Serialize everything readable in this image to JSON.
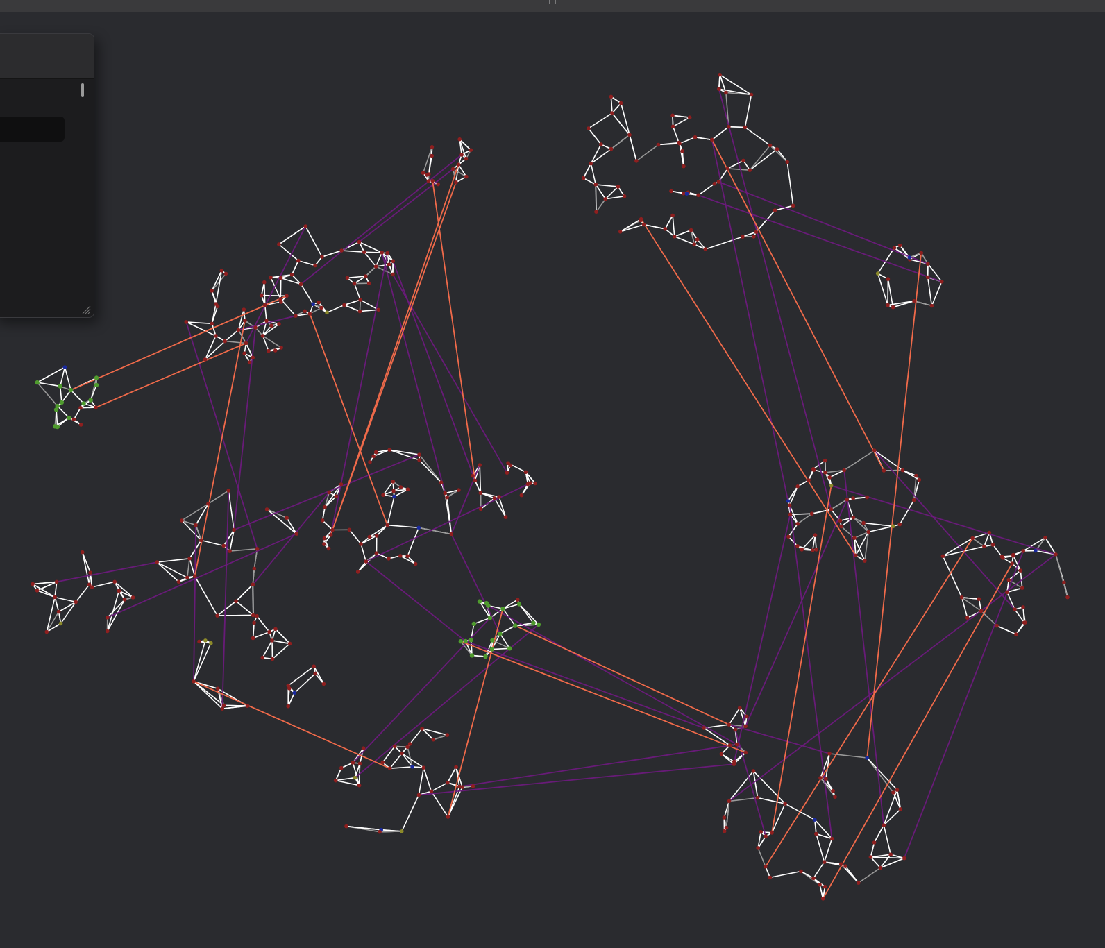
{
  "window": {
    "title": "ı ı"
  },
  "panel": {
    "search_value": "",
    "search_placeholder": ""
  },
  "graph": {
    "node_colors": {
      "default": "#8e1f1f",
      "green": "#4f9b2e",
      "blue": "#1a2a9e",
      "yellow": "#8c8a2a"
    },
    "edge_colors": {
      "default": "#ffffff",
      "dim": "#9a9a9a",
      "purple": "#6b1a7c",
      "orange": "#f06a4a"
    }
  }
}
